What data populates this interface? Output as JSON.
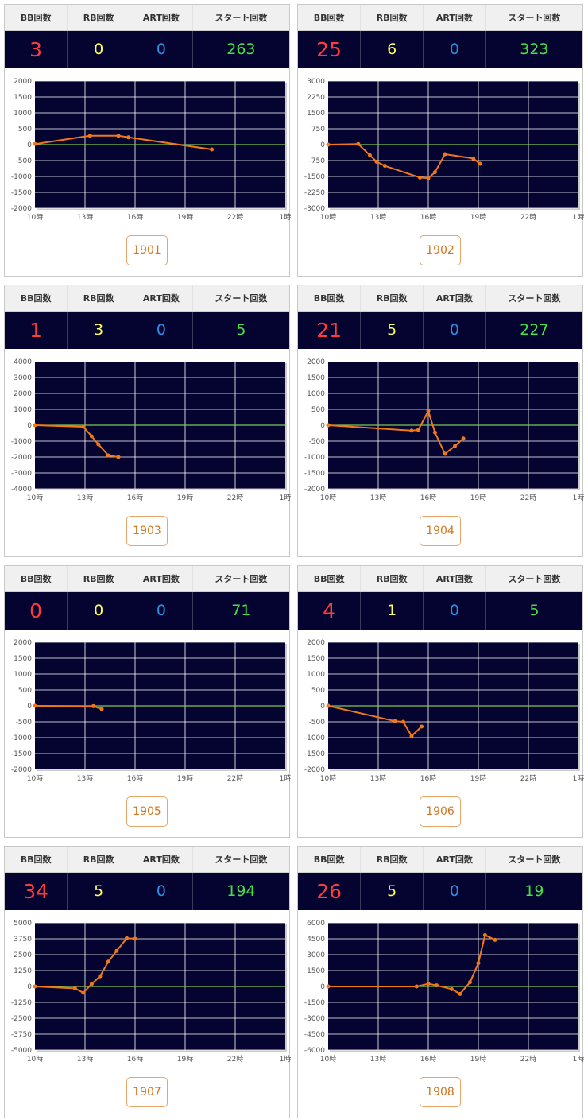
{
  "headers": {
    "bb": "BB回数",
    "rb": "RB回数",
    "art": "ART回数",
    "start": "スタート回数"
  },
  "x_ticks": [
    "10時",
    "13時",
    "16時",
    "19時",
    "22時",
    "1時"
  ],
  "colors": {
    "plot_bg": "#050330",
    "grid": "#ffffff",
    "zero_line": "#7cc850",
    "series": "#f07818",
    "bb": "#ff3b3b",
    "rb": "#ffff55",
    "art": "#2c8fe6",
    "start": "#44e044"
  },
  "machines": [
    {
      "id": "1901",
      "bb": "3",
      "rb": "0",
      "art": "0",
      "start": "263",
      "chart_data": {
        "type": "line",
        "x_range": [
          10,
          25
        ],
        "ylim": [
          -2000,
          2000
        ],
        "y_ticks": [
          2000,
          1500,
          1000,
          500,
          0,
          -500,
          -1000,
          -1500,
          -2000
        ],
        "points": [
          [
            10,
            20
          ],
          [
            13.3,
            280
          ],
          [
            15,
            280
          ],
          [
            15.6,
            230
          ],
          [
            20.6,
            -150
          ]
        ]
      }
    },
    {
      "id": "1902",
      "bb": "25",
      "rb": "6",
      "art": "0",
      "start": "323",
      "chart_data": {
        "type": "line",
        "x_range": [
          10,
          25
        ],
        "ylim": [
          -3000,
          3000
        ],
        "y_ticks": [
          3000,
          2250,
          1500,
          750,
          0,
          -750,
          -1500,
          -2250,
          -3000
        ],
        "points": [
          [
            10,
            0
          ],
          [
            11.8,
            30
          ],
          [
            12.5,
            -500
          ],
          [
            12.9,
            -800
          ],
          [
            13.4,
            -1000
          ],
          [
            15.5,
            -1550
          ],
          [
            16,
            -1580
          ],
          [
            16.4,
            -1300
          ],
          [
            17,
            -450
          ],
          [
            18.7,
            -650
          ],
          [
            19.1,
            -900
          ]
        ]
      }
    },
    {
      "id": "1903",
      "bb": "1",
      "rb": "3",
      "art": "0",
      "start": "5",
      "chart_data": {
        "type": "line",
        "x_range": [
          10,
          25
        ],
        "ylim": [
          -4000,
          4000
        ],
        "y_ticks": [
          4000,
          3000,
          2000,
          1000,
          0,
          -1000,
          -2000,
          -3000,
          -4000
        ],
        "points": [
          [
            10,
            0
          ],
          [
            12.9,
            -100
          ],
          [
            13.4,
            -700
          ],
          [
            13.8,
            -1200
          ],
          [
            14.4,
            -1900
          ],
          [
            15,
            -2000
          ]
        ]
      }
    },
    {
      "id": "1904",
      "bb": "21",
      "rb": "5",
      "art": "0",
      "start": "227",
      "chart_data": {
        "type": "line",
        "x_range": [
          10,
          25
        ],
        "ylim": [
          -2000,
          2000
        ],
        "y_ticks": [
          2000,
          1500,
          1000,
          500,
          0,
          -500,
          -1000,
          -1500,
          -2000
        ],
        "points": [
          [
            10,
            0
          ],
          [
            15,
            -170
          ],
          [
            15.4,
            -150
          ],
          [
            16,
            450
          ],
          [
            16.4,
            -230
          ],
          [
            17,
            -900
          ],
          [
            17.6,
            -650
          ],
          [
            18.1,
            -420
          ]
        ]
      }
    },
    {
      "id": "1905",
      "bb": "0",
      "rb": "0",
      "art": "0",
      "start": "71",
      "chart_data": {
        "type": "line",
        "x_range": [
          10,
          25
        ],
        "ylim": [
          -2000,
          2000
        ],
        "y_ticks": [
          2000,
          1500,
          1000,
          500,
          0,
          -500,
          -1000,
          -1500,
          -2000
        ],
        "points": [
          [
            10,
            0
          ],
          [
            13.5,
            -10
          ],
          [
            14,
            -100
          ]
        ]
      }
    },
    {
      "id": "1906",
      "bb": "4",
      "rb": "1",
      "art": "0",
      "start": "5",
      "chart_data": {
        "type": "line",
        "x_range": [
          10,
          25
        ],
        "ylim": [
          -2000,
          2000
        ],
        "y_ticks": [
          2000,
          1500,
          1000,
          500,
          0,
          -500,
          -1000,
          -1500,
          -2000
        ],
        "points": [
          [
            10,
            0
          ],
          [
            14,
            -480
          ],
          [
            14.5,
            -500
          ],
          [
            15,
            -950
          ],
          [
            15.6,
            -650
          ]
        ]
      }
    },
    {
      "id": "1907",
      "bb": "34",
      "rb": "5",
      "art": "0",
      "start": "194",
      "chart_data": {
        "type": "line",
        "x_range": [
          10,
          25
        ],
        "ylim": [
          -5000,
          5000
        ],
        "y_ticks": [
          5000,
          3750,
          2500,
          1250,
          0,
          -1250,
          -2500,
          -3750,
          -5000
        ],
        "points": [
          [
            10,
            0
          ],
          [
            12.4,
            -150
          ],
          [
            12.9,
            -500
          ],
          [
            13.4,
            200
          ],
          [
            13.9,
            800
          ],
          [
            14.4,
            1950
          ],
          [
            14.9,
            2800
          ],
          [
            15.5,
            3800
          ],
          [
            16,
            3750
          ]
        ]
      }
    },
    {
      "id": "1908",
      "bb": "26",
      "rb": "5",
      "art": "0",
      "start": "19",
      "chart_data": {
        "type": "line",
        "x_range": [
          10,
          25
        ],
        "ylim": [
          -6000,
          6000
        ],
        "y_ticks": [
          6000,
          4500,
          3000,
          1500,
          0,
          -1500,
          -3000,
          -4500,
          -6000
        ],
        "points": [
          [
            10,
            0
          ],
          [
            15.3,
            0
          ],
          [
            16,
            250
          ],
          [
            16.5,
            100
          ],
          [
            17.4,
            -250
          ],
          [
            17.9,
            -700
          ],
          [
            18.5,
            400
          ],
          [
            19,
            2200
          ],
          [
            19.4,
            4850
          ],
          [
            20,
            4400
          ]
        ]
      }
    }
  ]
}
